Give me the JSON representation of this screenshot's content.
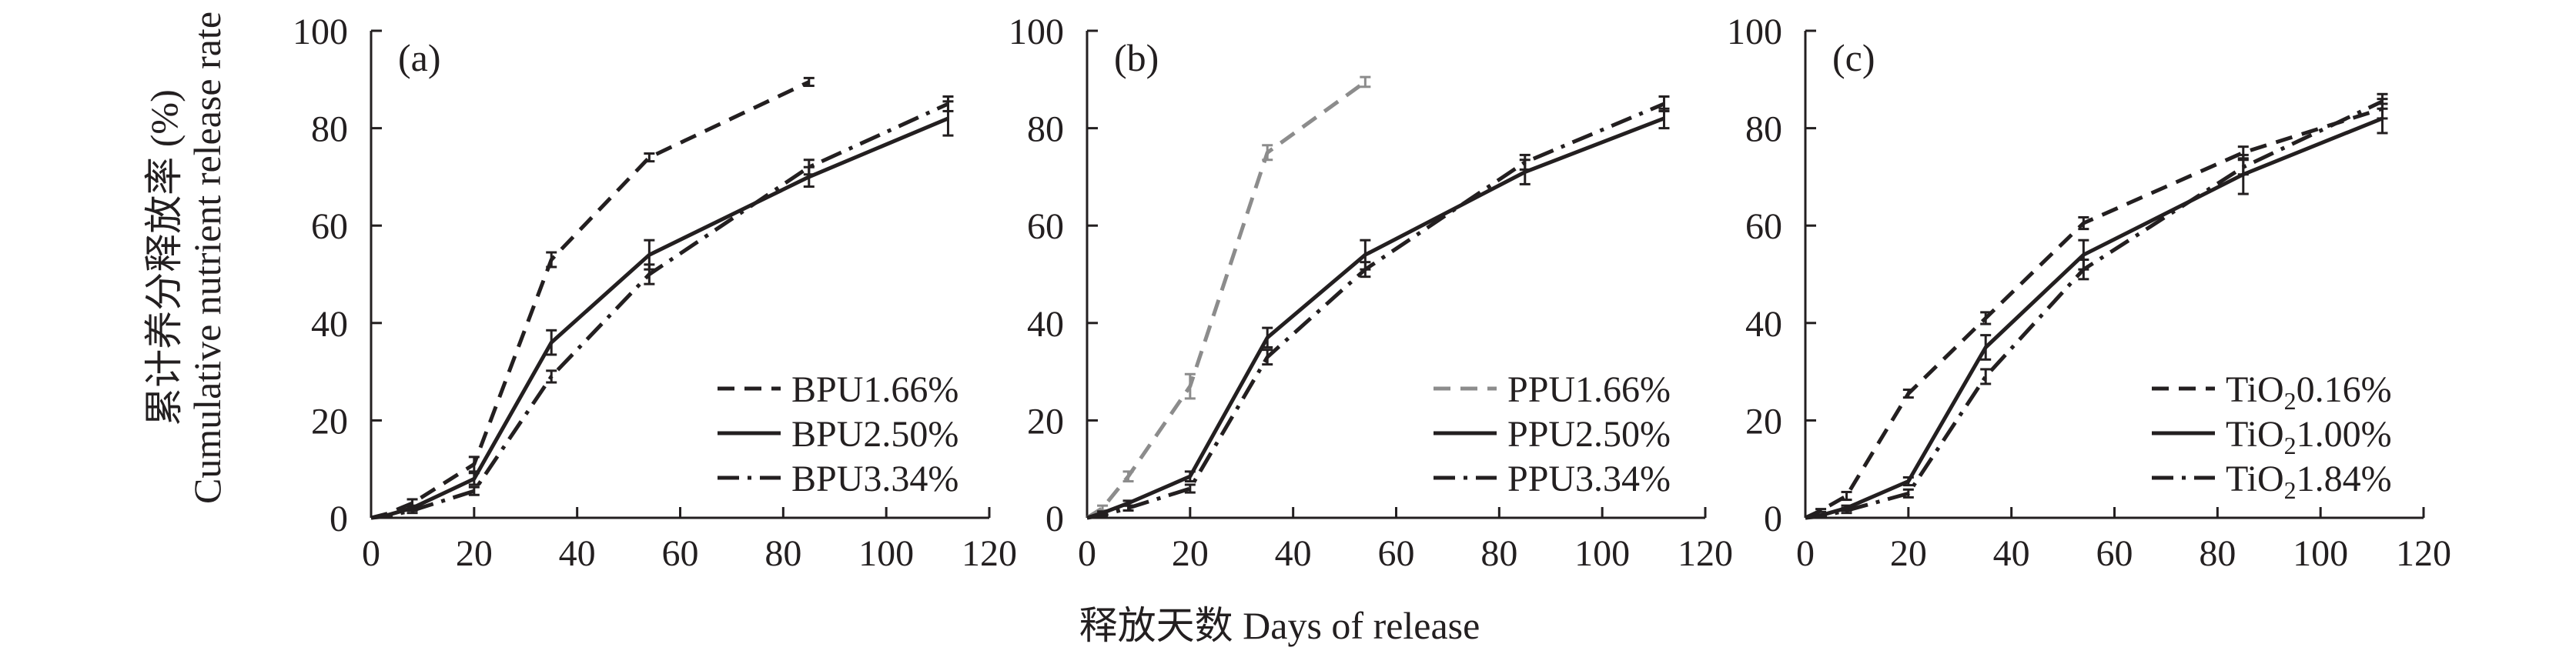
{
  "figure": {
    "ylabel_zh": "累计养分释放率 (%)",
    "ylabel_en": "Cumulative nutrient release rate",
    "xlabel": "释放天数 Days of release"
  },
  "chart_data": [
    {
      "type": "line",
      "panel": "(a)",
      "xlim": [
        0,
        120
      ],
      "ylim": [
        0,
        100
      ],
      "xticks": [
        "0",
        "20",
        "40",
        "60",
        "80",
        "100",
        "120"
      ],
      "yticks": [
        "0",
        "20",
        "40",
        "60",
        "80",
        "100"
      ],
      "legend_position": "lower-right",
      "grid": false,
      "series": [
        {
          "name": "BPU1.66%",
          "style": "dashed",
          "color": "#231f20",
          "x": [
            0,
            3,
            8,
            20,
            35,
            54,
            85
          ],
          "y": [
            0,
            0.8,
            3,
            11,
            53,
            74,
            89.5
          ],
          "err": [
            0,
            0,
            0.8,
            1.5,
            1.5,
            0.8,
            0.8
          ]
        },
        {
          "name": "BPU2.50%",
          "style": "solid",
          "color": "#231f20",
          "x": [
            0,
            3,
            8,
            20,
            35,
            54,
            85,
            112
          ],
          "y": [
            0,
            0.5,
            2,
            8,
            36,
            54,
            70,
            82
          ],
          "err": [
            0,
            0,
            0.5,
            1.2,
            2.5,
            3,
            2,
            3.5
          ]
        },
        {
          "name": "BPU3.34%",
          "style": "dashdot",
          "color": "#231f20",
          "x": [
            0,
            3,
            8,
            20,
            35,
            54,
            85,
            112
          ],
          "y": [
            0,
            0.3,
            1.5,
            5.5,
            29,
            50,
            72,
            85
          ],
          "err": [
            0,
            0,
            0.5,
            0.8,
            1.2,
            2,
            1.5,
            1.5
          ]
        }
      ]
    },
    {
      "type": "line",
      "panel": "(b)",
      "xlim": [
        0,
        120
      ],
      "ylim": [
        0,
        100
      ],
      "xticks": [
        "0",
        "20",
        "40",
        "60",
        "80",
        "100",
        "120"
      ],
      "yticks": [
        "0",
        "20",
        "40",
        "60",
        "80",
        "100"
      ],
      "legend_position": "lower-right",
      "grid": false,
      "series": [
        {
          "name": "PPU1.66%",
          "style": "dashed",
          "color": "#8c8c8c",
          "x": [
            0,
            3,
            8,
            20,
            35,
            54
          ],
          "y": [
            0,
            2,
            8.5,
            27,
            75,
            89.5
          ],
          "err": [
            0,
            0.5,
            1,
            2.5,
            1.5,
            1
          ]
        },
        {
          "name": "PPU2.50%",
          "style": "solid",
          "color": "#231f20",
          "x": [
            0,
            3,
            8,
            20,
            35,
            54,
            85,
            112
          ],
          "y": [
            0,
            1,
            3,
            8.5,
            37,
            54,
            71,
            82
          ],
          "err": [
            0,
            0.3,
            0.5,
            1,
            2,
            3,
            2.5,
            2
          ]
        },
        {
          "name": "PPU3.34%",
          "style": "dashdot",
          "color": "#231f20",
          "x": [
            0,
            3,
            8,
            20,
            35,
            54,
            85,
            112
          ],
          "y": [
            0,
            0.5,
            2,
            6,
            33,
            51,
            73,
            85
          ],
          "err": [
            0,
            0.2,
            0.5,
            0.8,
            1.5,
            1.5,
            1.5,
            1.5
          ]
        }
      ]
    },
    {
      "type": "line",
      "panel": "(c)",
      "xlim": [
        0,
        120
      ],
      "ylim": [
        0,
        100
      ],
      "xticks": [
        "0",
        "20",
        "40",
        "60",
        "80",
        "100",
        "120"
      ],
      "yticks": [
        "0",
        "20",
        "40",
        "60",
        "80",
        "100"
      ],
      "legend_position": "lower-right",
      "grid": false,
      "series": [
        {
          "name": "TiO₂0.16%",
          "label_parts": [
            "TiO",
            "2",
            "0.16%"
          ],
          "style": "dashed",
          "color": "#231f20",
          "x": [
            0,
            3,
            8,
            20,
            35,
            54,
            85,
            112
          ],
          "y": [
            0,
            1.5,
            4.5,
            25.5,
            41,
            60.5,
            75,
            84
          ],
          "err": [
            0,
            0.3,
            0.8,
            0.8,
            1.2,
            1.2,
            1.2,
            2
          ]
        },
        {
          "name": "TiO₂1.00%",
          "label_parts": [
            "TiO",
            "2",
            "1.00%"
          ],
          "style": "solid",
          "color": "#231f20",
          "x": [
            0,
            3,
            8,
            20,
            35,
            54,
            85,
            112
          ],
          "y": [
            0,
            0.5,
            2,
            7.5,
            35,
            54,
            70.5,
            82
          ],
          "err": [
            0,
            0.2,
            0.5,
            0.8,
            2.5,
            3,
            4,
            3
          ]
        },
        {
          "name": "TiO₂1.84%",
          "label_parts": [
            "TiO",
            "2",
            "1.84%"
          ],
          "style": "dashdot",
          "color": "#231f20",
          "x": [
            0,
            3,
            8,
            20,
            35,
            54,
            85,
            112
          ],
          "y": [
            0,
            0.3,
            1.5,
            5,
            29,
            51,
            72,
            85.5
          ],
          "err": [
            0,
            0.2,
            0.5,
            0.8,
            1.5,
            2,
            1.5,
            1.5
          ]
        }
      ]
    }
  ]
}
